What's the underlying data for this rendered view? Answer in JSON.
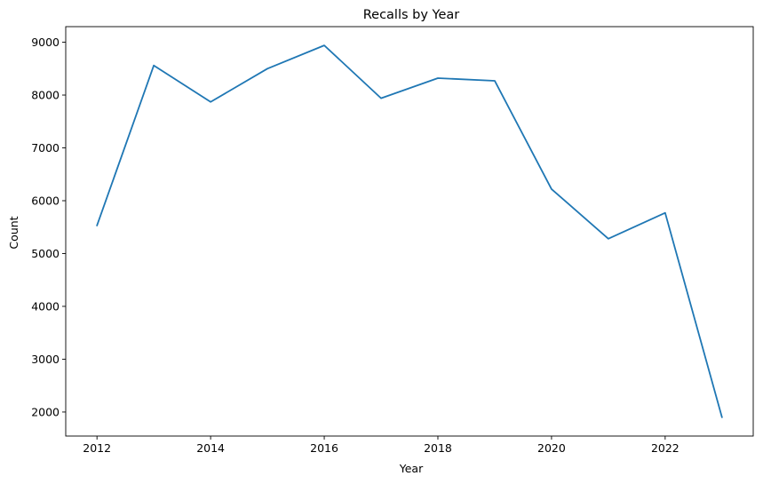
{
  "chart_data": {
    "type": "line",
    "title": "Recalls by Year",
    "xlabel": "Year",
    "ylabel": "Count",
    "x": [
      2012,
      2013,
      2014,
      2015,
      2016,
      2017,
      2018,
      2019,
      2020,
      2021,
      2022,
      2023
    ],
    "series": [
      {
        "values": [
          5530,
          8560,
          7870,
          8500,
          8940,
          7940,
          8320,
          8270,
          6220,
          5280,
          5770,
          1900
        ],
        "color": "#1f77b4"
      }
    ],
    "xlim": [
      2011.45,
      2023.55
    ],
    "ylim": [
      1545,
      9295
    ],
    "xticks": [
      2012,
      2014,
      2016,
      2018,
      2020,
      2022
    ],
    "xtick_labels": [
      "2012",
      "2014",
      "2016",
      "2018",
      "2020",
      "2022"
    ],
    "yticks": [
      2000,
      3000,
      4000,
      5000,
      6000,
      7000,
      8000,
      9000
    ],
    "ytick_labels": [
      "2000",
      "3000",
      "4000",
      "5000",
      "6000",
      "7000",
      "8000",
      "9000"
    ],
    "grid": false,
    "legend": false
  }
}
